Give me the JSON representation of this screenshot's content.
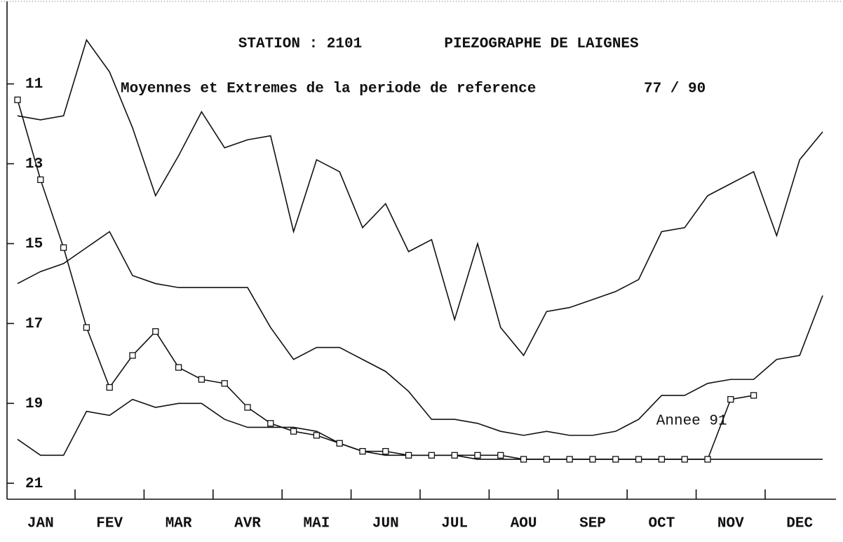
{
  "chart_data": {
    "type": "line",
    "station": "STATION : 2101",
    "title": "PIEZOGRAPHE DE LAIGNES",
    "subtitle": "Moyennes et Extremes de la periode de reference",
    "period": "77 / 90",
    "inverted": true,
    "ylim": [
      8.9,
      21.4
    ],
    "yticks": [
      11,
      13,
      15,
      17,
      19,
      21
    ],
    "categories": [
      null,
      "JAN",
      null,
      null,
      "FEV",
      null,
      null,
      "MAR",
      null,
      null,
      "AVR",
      null,
      null,
      "MAI",
      null,
      null,
      "JUN",
      null,
      null,
      "JUL",
      null,
      null,
      "AOU",
      null,
      null,
      "SEP",
      null,
      null,
      "OCT",
      null,
      null,
      "NOV",
      null,
      null,
      "DEC",
      null
    ],
    "series": [
      {
        "color": "#111111",
        "values": [
          11.8,
          11.9,
          11.8,
          9.9,
          10.7,
          12.1,
          13.8,
          12.8,
          11.7,
          12.6,
          12.4,
          12.3,
          14.7,
          12.9,
          13.2,
          14.6,
          14.0,
          15.2,
          14.9,
          16.9,
          15.0,
          17.1,
          17.8,
          16.7,
          16.6,
          16.4,
          16.2,
          15.9,
          14.7,
          14.6,
          13.8,
          13.5,
          13.2,
          14.8,
          12.9,
          12.2
        ]
      },
      {
        "color": "#111111",
        "values": [
          16.0,
          15.7,
          15.5,
          15.1,
          14.7,
          15.8,
          16.0,
          16.1,
          16.1,
          16.1,
          16.1,
          17.1,
          17.9,
          17.6,
          17.6,
          17.9,
          18.2,
          18.7,
          19.4,
          19.4,
          19.5,
          19.7,
          19.8,
          19.7,
          19.8,
          19.8,
          19.7,
          19.4,
          18.8,
          18.8,
          18.5,
          18.4,
          18.4,
          17.9,
          17.8,
          16.3
        ]
      },
      {
        "color": "#111111",
        "values": [
          19.9,
          20.3,
          20.3,
          19.2,
          19.3,
          18.9,
          19.1,
          19.0,
          19.0,
          19.4,
          19.6,
          19.6,
          19.6,
          19.7,
          20.0,
          20.2,
          20.3,
          20.3,
          20.3,
          20.3,
          20.4,
          20.4,
          20.4,
          20.4,
          20.4,
          20.4,
          20.4,
          20.4,
          20.4,
          20.4,
          20.4,
          20.4,
          20.4,
          20.4,
          20.4,
          20.4
        ]
      },
      {
        "name": "Annee 91",
        "color": "#111111",
        "markers": "square",
        "values": [
          11.4,
          13.4,
          15.1,
          17.1,
          18.6,
          17.8,
          17.2,
          18.1,
          18.4,
          18.5,
          19.1,
          19.5,
          19.7,
          19.8,
          20.0,
          20.2,
          20.2,
          20.3,
          20.3,
          20.3,
          20.3,
          20.3,
          20.4,
          20.4,
          20.4,
          20.4,
          20.4,
          20.4,
          20.4,
          20.4,
          20.4,
          18.9,
          18.8,
          null,
          null,
          null
        ]
      }
    ]
  }
}
